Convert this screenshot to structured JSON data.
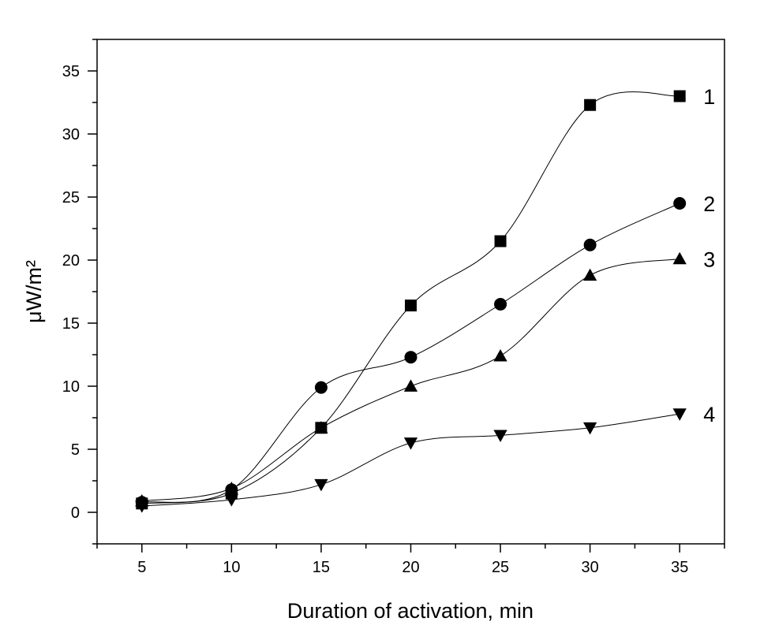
{
  "chart_data": {
    "type": "line",
    "xlabel": "Duration of activation, min",
    "ylabel": "μW/m²",
    "x": [
      5,
      10,
      15,
      20,
      25,
      30,
      35
    ],
    "series": [
      {
        "name": "1",
        "marker": "square",
        "color": "#000000",
        "values": [
          0.7,
          1.5,
          6.7,
          16.4,
          21.5,
          32.3,
          33.0
        ]
      },
      {
        "name": "2",
        "marker": "circle",
        "color": "#000000",
        "values": [
          0.8,
          1.8,
          9.9,
          12.3,
          16.5,
          21.2,
          24.5
        ]
      },
      {
        "name": "3",
        "marker": "triangle-up",
        "color": "#000000",
        "values": [
          0.9,
          1.9,
          6.7,
          10.0,
          12.4,
          18.8,
          20.1
        ]
      },
      {
        "name": "4",
        "marker": "triangle-down",
        "color": "#000000",
        "values": [
          0.5,
          1.0,
          2.2,
          5.5,
          6.1,
          6.7,
          7.8
        ]
      }
    ],
    "xlim": [
      2.5,
      37.5
    ],
    "xticks": [
      5,
      10,
      15,
      20,
      25,
      30,
      35
    ],
    "ylim": [
      -2.5,
      37.5
    ],
    "yticks": [
      0,
      5,
      10,
      15,
      20,
      25,
      30,
      35
    ],
    "grid": false
  }
}
